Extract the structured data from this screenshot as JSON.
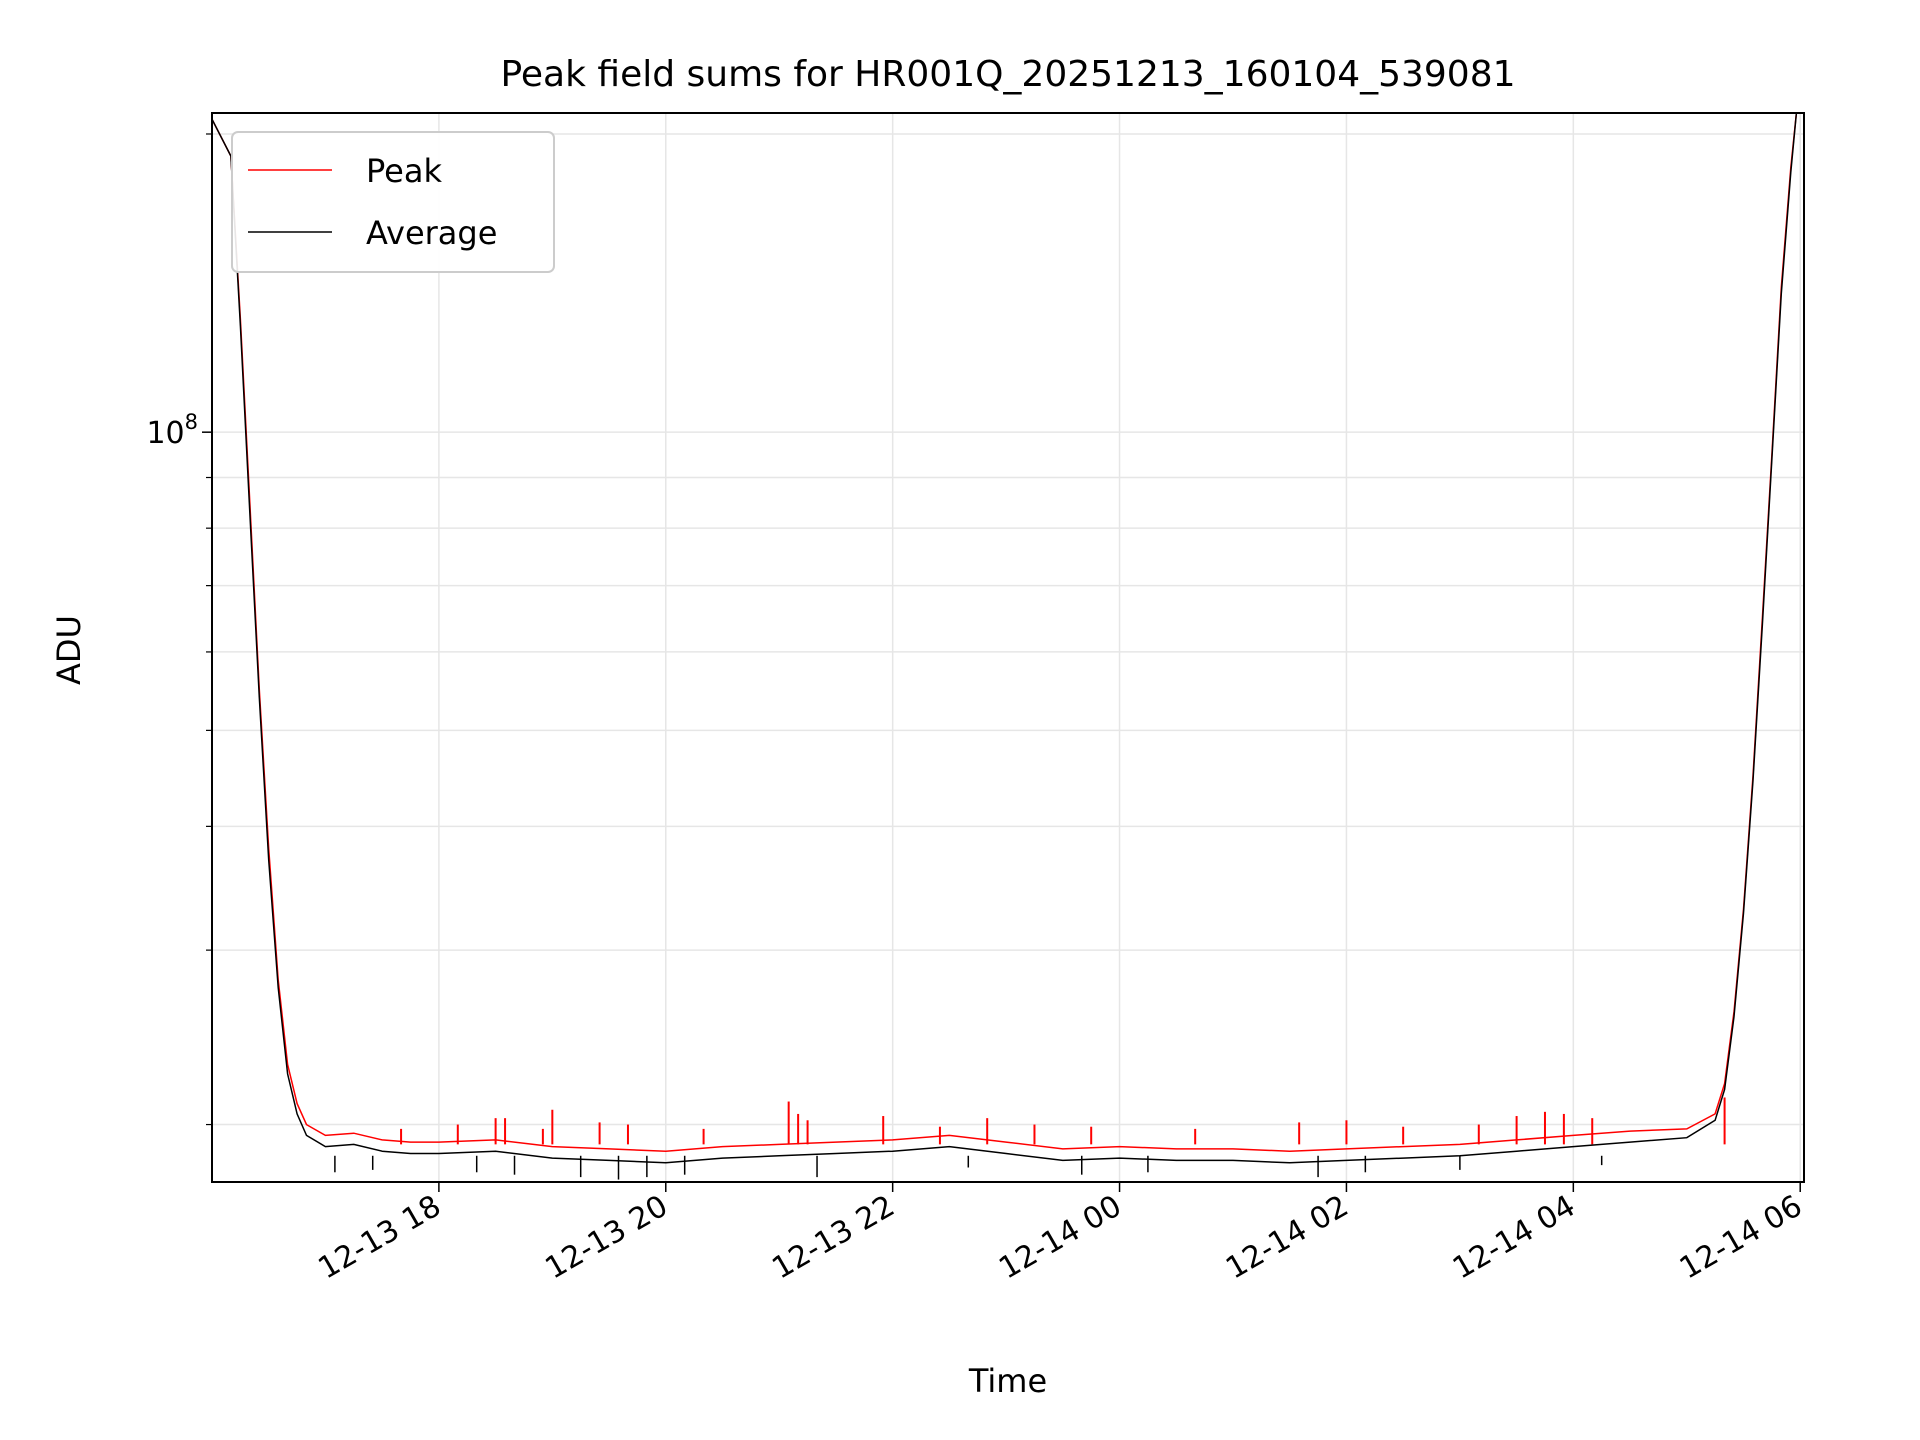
{
  "chart_data": {
    "type": "line",
    "title": "Peak field sums for HR001Q_20251213_160104_539081",
    "xlabel": "Time",
    "ylabel": "ADU",
    "y_scale": "log",
    "ylim": [
      17500000,
      210000000
    ],
    "xlim": [
      "2025-12-13 16:00",
      "2025-12-14 06:02"
    ],
    "grid": true,
    "legend_position": "top-left",
    "x_tick_labels": [
      "12-13 18",
      "12-13 20",
      "12-13 22",
      "12-14 00",
      "12-14 02",
      "12-14 04",
      "12-14 06"
    ],
    "x_ticks": [
      "2025-12-13 18:00",
      "2025-12-13 20:00",
      "2025-12-13 22:00",
      "2025-12-14 00:00",
      "2025-12-14 02:00",
      "2025-12-14 04:00",
      "2025-12-14 06:00"
    ],
    "y_tick_labels": [
      {
        "base": "10",
        "exp": "8",
        "value": 100000000
      }
    ],
    "colors": {
      "Peak": "#ff0000",
      "Average": "#000000"
    },
    "series": [
      {
        "name": "Peak",
        "x": [
          "2025-12-13 16:00",
          "2025-12-13 16:10",
          "2025-12-13 16:15",
          "2025-12-13 16:20",
          "2025-12-13 16:25",
          "2025-12-13 16:30",
          "2025-12-13 16:35",
          "2025-12-13 16:40",
          "2025-12-13 16:45",
          "2025-12-13 16:50",
          "2025-12-13 17:00",
          "2025-12-13 17:15",
          "2025-12-13 17:30",
          "2025-12-13 17:45",
          "2025-12-13 18:00",
          "2025-12-13 18:30",
          "2025-12-13 19:00",
          "2025-12-13 19:30",
          "2025-12-13 20:00",
          "2025-12-13 20:30",
          "2025-12-13 21:00",
          "2025-12-13 21:30",
          "2025-12-13 22:00",
          "2025-12-13 22:30",
          "2025-12-13 23:00",
          "2025-12-13 23:30",
          "2025-12-14 00:00",
          "2025-12-14 00:30",
          "2025-12-14 01:00",
          "2025-12-14 01:30",
          "2025-12-14 02:00",
          "2025-12-14 02:30",
          "2025-12-14 03:00",
          "2025-12-14 03:30",
          "2025-12-14 04:00",
          "2025-12-14 04:30",
          "2025-12-14 05:00",
          "2025-12-14 05:15",
          "2025-12-14 05:20",
          "2025-12-14 05:25",
          "2025-12-14 05:30",
          "2025-12-14 05:35",
          "2025-12-14 05:40",
          "2025-12-14 05:45",
          "2025-12-14 05:50",
          "2025-12-14 05:55",
          "2025-12-14 05:58"
        ],
        "y": [
          207000000,
          190000000,
          130000000,
          85000000,
          55000000,
          38000000,
          28000000,
          23000000,
          21000000,
          20000000,
          19500000,
          19600000,
          19300000,
          19200000,
          19200000,
          19300000,
          19000000,
          18900000,
          18800000,
          19000000,
          19100000,
          19200000,
          19300000,
          19500000,
          19200000,
          18900000,
          19000000,
          18900000,
          18900000,
          18800000,
          18900000,
          19000000,
          19100000,
          19300000,
          19500000,
          19700000,
          19800000,
          20500000,
          22000000,
          26000000,
          33000000,
          45000000,
          65000000,
          95000000,
          140000000,
          185000000,
          210000000
        ],
        "spikes": [
          {
            "x": "2025-12-13 17:40",
            "y": 19800000
          },
          {
            "x": "2025-12-13 18:10",
            "y": 20000000
          },
          {
            "x": "2025-12-13 18:30",
            "y": 20300000
          },
          {
            "x": "2025-12-13 18:35",
            "y": 20300000
          },
          {
            "x": "2025-12-13 18:55",
            "y": 19800000
          },
          {
            "x": "2025-12-13 19:00",
            "y": 20700000
          },
          {
            "x": "2025-12-13 19:25",
            "y": 20100000
          },
          {
            "x": "2025-12-13 19:40",
            "y": 20000000
          },
          {
            "x": "2025-12-13 20:20",
            "y": 19800000
          },
          {
            "x": "2025-12-13 21:05",
            "y": 21100000
          },
          {
            "x": "2025-12-13 21:10",
            "y": 20500000
          },
          {
            "x": "2025-12-13 21:15",
            "y": 20200000
          },
          {
            "x": "2025-12-13 21:55",
            "y": 20400000
          },
          {
            "x": "2025-12-13 22:25",
            "y": 19900000
          },
          {
            "x": "2025-12-13 22:50",
            "y": 20300000
          },
          {
            "x": "2025-12-13 23:15",
            "y": 20000000
          },
          {
            "x": "2025-12-13 23:45",
            "y": 19900000
          },
          {
            "x": "2025-12-14 00:40",
            "y": 19800000
          },
          {
            "x": "2025-12-14 01:35",
            "y": 20100000
          },
          {
            "x": "2025-12-14 02:00",
            "y": 20200000
          },
          {
            "x": "2025-12-14 02:30",
            "y": 19900000
          },
          {
            "x": "2025-12-14 03:10",
            "y": 20000000
          },
          {
            "x": "2025-12-14 03:30",
            "y": 20400000
          },
          {
            "x": "2025-12-14 03:45",
            "y": 20600000
          },
          {
            "x": "2025-12-14 03:55",
            "y": 20500000
          },
          {
            "x": "2025-12-14 04:10",
            "y": 20300000
          },
          {
            "x": "2025-12-14 05:20",
            "y": 21300000
          }
        ]
      },
      {
        "name": "Average",
        "x": [
          "2025-12-13 16:00",
          "2025-12-13 16:10",
          "2025-12-13 16:15",
          "2025-12-13 16:20",
          "2025-12-13 16:25",
          "2025-12-13 16:30",
          "2025-12-13 16:35",
          "2025-12-13 16:40",
          "2025-12-13 16:45",
          "2025-12-13 16:50",
          "2025-12-13 17:00",
          "2025-12-13 17:15",
          "2025-12-13 17:30",
          "2025-12-13 17:45",
          "2025-12-13 18:00",
          "2025-12-13 18:30",
          "2025-12-13 19:00",
          "2025-12-13 19:30",
          "2025-12-13 20:00",
          "2025-12-13 20:30",
          "2025-12-13 21:00",
          "2025-12-13 21:30",
          "2025-12-13 22:00",
          "2025-12-13 22:30",
          "2025-12-13 23:00",
          "2025-12-13 23:30",
          "2025-12-14 00:00",
          "2025-12-14 00:30",
          "2025-12-14 01:00",
          "2025-12-14 01:30",
          "2025-12-14 02:00",
          "2025-12-14 02:30",
          "2025-12-14 03:00",
          "2025-12-14 03:30",
          "2025-12-14 04:00",
          "2025-12-14 04:30",
          "2025-12-14 05:00",
          "2025-12-14 05:15",
          "2025-12-14 05:20",
          "2025-12-14 05:25",
          "2025-12-14 05:30",
          "2025-12-14 05:35",
          "2025-12-14 05:40",
          "2025-12-14 05:45",
          "2025-12-14 05:50",
          "2025-12-14 05:55",
          "2025-12-14 05:58"
        ],
        "y": [
          207000000,
          190000000,
          128000000,
          83000000,
          54000000,
          37000000,
          27500000,
          22500000,
          20500000,
          19500000,
          19000000,
          19100000,
          18800000,
          18700000,
          18700000,
          18800000,
          18500000,
          18400000,
          18300000,
          18500000,
          18600000,
          18700000,
          18800000,
          19000000,
          18700000,
          18400000,
          18500000,
          18400000,
          18400000,
          18300000,
          18400000,
          18500000,
          18600000,
          18800000,
          19000000,
          19200000,
          19400000,
          20200000,
          21700000,
          25700000,
          32700000,
          44500000,
          64000000,
          94000000,
          138000000,
          183000000,
          210000000
        ],
        "dips": [
          {
            "x": "2025-12-13 17:05",
            "y": 17900000
          },
          {
            "x": "2025-12-13 17:25",
            "y": 18000000
          },
          {
            "x": "2025-12-13 18:20",
            "y": 17900000
          },
          {
            "x": "2025-12-13 18:40",
            "y": 17800000
          },
          {
            "x": "2025-12-13 19:15",
            "y": 17700000
          },
          {
            "x": "2025-12-13 19:35",
            "y": 17600000
          },
          {
            "x": "2025-12-13 19:50",
            "y": 17700000
          },
          {
            "x": "2025-12-13 20:10",
            "y": 17800000
          },
          {
            "x": "2025-12-13 21:20",
            "y": 17700000
          },
          {
            "x": "2025-12-13 22:40",
            "y": 18100000
          },
          {
            "x": "2025-12-13 23:40",
            "y": 17800000
          },
          {
            "x": "2025-12-14 00:15",
            "y": 17900000
          },
          {
            "x": "2025-12-14 01:45",
            "y": 17700000
          },
          {
            "x": "2025-12-14 02:10",
            "y": 17900000
          },
          {
            "x": "2025-12-14 03:00",
            "y": 18000000
          },
          {
            "x": "2025-12-14 04:15",
            "y": 18200000
          }
        ]
      }
    ]
  }
}
